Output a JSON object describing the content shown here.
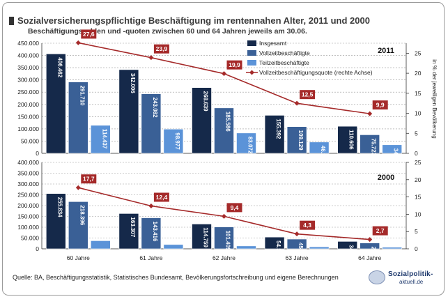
{
  "title": "Sozialversicherungspflichtige Beschäftigung im rentennahen Alter, 2011 und 2000",
  "subtitle": "Beschäftigungszahlen und -quoten zwischen 60 und 64 Jahren jeweils am 30.06.",
  "source": "Quelle: BA, Beschäftigungsstatistik, Statistisches Bundesamt, Bevölkerungsfortschreibung und eigene Berechnungen",
  "logo": {
    "line1": "Sozialpolitik-",
    "line2": "aktuell.de"
  },
  "colors": {
    "insgesamt": "#15294a",
    "vollzeit": "#3a6096",
    "teilzeit": "#5b93d8",
    "quote": "#a52a2a",
    "grid": "#999999"
  },
  "chart_data": [
    {
      "type": "bar",
      "panel_label": "2011",
      "categories": [
        "60 Jahre",
        "61 Jahre",
        "62 Jahre",
        "63 Jahre",
        "64 Jahre"
      ],
      "series": [
        {
          "name": "Insgesamt",
          "values": [
            406462,
            342006,
            268639,
            155392,
            110606
          ],
          "labels": [
            "406.462",
            "342.006",
            "268.639",
            "155.392",
            "110.606"
          ]
        },
        {
          "name": "Vollzeitbeschäftigte",
          "values": [
            291710,
            243082,
            185586,
            109129,
            75723
          ],
          "labels": [
            "291.710",
            "243.082",
            "185.586",
            "109.129",
            "75.723"
          ]
        },
        {
          "name": "Teilzeitbeschäftigte",
          "values": [
            114437,
            98977,
            83072,
            46143,
            34795
          ],
          "labels": [
            "114.437",
            "98.977",
            "83.072",
            "46.143",
            "34.795"
          ]
        },
        {
          "name": "Vollzeitbeschäftigungsquote (rechte Achse)",
          "type": "line",
          "axis": "right",
          "values": [
            27.6,
            23.9,
            19.9,
            12.5,
            9.9
          ],
          "labels": [
            "27,6",
            "23,9",
            "19,9",
            "12,5",
            "9,9"
          ]
        }
      ],
      "ylim": [
        0,
        450000
      ],
      "yticks": [
        0,
        50000,
        100000,
        150000,
        200000,
        250000,
        300000,
        350000,
        400000,
        450000
      ],
      "ytick_labels": [
        "0",
        "50.000",
        "100.000",
        "150.000",
        "200.000",
        "250.000",
        "300.000",
        "350.000",
        "400.000",
        "450.000"
      ],
      "y2lim": [
        0,
        27.5
      ],
      "y2ticks": [
        0,
        5,
        10,
        15,
        20,
        25
      ],
      "y2label": "in % der jeweiligen Bevölkerung",
      "legend_position": "top-right",
      "grid": true
    },
    {
      "type": "bar",
      "panel_label": "2000",
      "categories": [
        "60 Jahre",
        "61 Jahre",
        "62 Jahre",
        "63 Jahre",
        "64 Jahre"
      ],
      "series": [
        {
          "name": "Insgesamt",
          "values": [
            255834,
            163307,
            114759,
            54327,
            34274
          ],
          "labels": [
            "255.834",
            "163.307",
            "114.759",
            "54.327",
            "34.274"
          ]
        },
        {
          "name": "Vollzeitbeschäftigte",
          "values": [
            218396,
            143416,
            101409,
            45097,
            27134
          ],
          "labels": [
            "218.396",
            "143.416",
            "101.409",
            "45.097",
            "27.134"
          ]
        },
        {
          "name": "Teilzeitbeschäftigte",
          "values": [
            37438,
            19891,
            13350,
            9230,
            7140
          ],
          "labels": [
            "",
            "",
            "",
            "",
            ""
          ]
        },
        {
          "name": "Vollzeitbeschäftigungsquote (rechte Achse)",
          "type": "line",
          "axis": "right",
          "values": [
            17.7,
            12.4,
            9.4,
            4.3,
            2.7
          ],
          "labels": [
            "17,7",
            "12,4",
            "9,4",
            "4,3",
            "2,7"
          ]
        }
      ],
      "ylim": [
        0,
        400000
      ],
      "yticks": [
        0,
        50000,
        100000,
        150000,
        200000,
        250000,
        300000,
        350000,
        400000
      ],
      "ytick_labels": [
        "0",
        "50.000",
        "100.000",
        "150.000",
        "200.000",
        "250.000",
        "300.000",
        "350.000",
        "400.000"
      ],
      "y2lim": [
        0,
        25
      ],
      "y2ticks": [
        0,
        5,
        10,
        15,
        20,
        25
      ],
      "grid": true
    }
  ]
}
